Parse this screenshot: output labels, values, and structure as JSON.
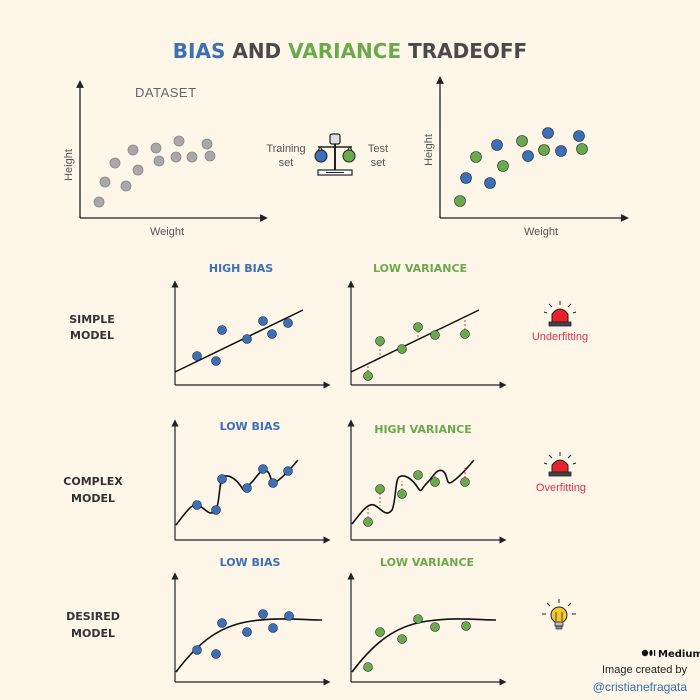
{
  "title": {
    "part1": "BIAS",
    "part2": " AND ",
    "part3": "VARIANCE",
    "part4": " TRADEOFF"
  },
  "colors": {
    "blue": "#3b6fb6",
    "green": "#6aaa4b",
    "gray": "#a8a8a8",
    "dark": "#4a4a4a",
    "red": "#e0354b",
    "bg": "#fdf6e9"
  },
  "dataset": {
    "label": "DATASET",
    "x_axis": "Weight",
    "y_axis": "Height"
  },
  "split": {
    "training": [
      "Training",
      "set"
    ],
    "test": [
      "Test",
      "set"
    ],
    "icon": "balance-scale-icon"
  },
  "split_chart": {
    "x_axis": "Weight",
    "y_axis": "Height"
  },
  "columns": {
    "high_bias": "HIGH BIAS",
    "low_variance_1": "LOW VARIANCE",
    "low_bias_1": "LOW BIAS",
    "high_variance": "HIGH VARIANCE",
    "low_bias_2": "LOW BIAS",
    "low_variance_2": "LOW VARIANCE"
  },
  "rows": {
    "simple": [
      "SIMPLE",
      "MODEL"
    ],
    "complex": [
      "COMPLEX",
      "MODEL"
    ],
    "desired": [
      "DESIRED",
      "MODEL"
    ]
  },
  "status": {
    "underfitting": {
      "label": "Underfitting",
      "icon": "alarm-siren-icon"
    },
    "overfitting": {
      "label": "Overfitting",
      "icon": "alarm-siren-icon"
    },
    "desired": {
      "icon": "lightbulb-icon"
    }
  },
  "credit": {
    "brand": "Medium",
    "line": "Image created by",
    "handle": "@cristianefragata"
  }
}
